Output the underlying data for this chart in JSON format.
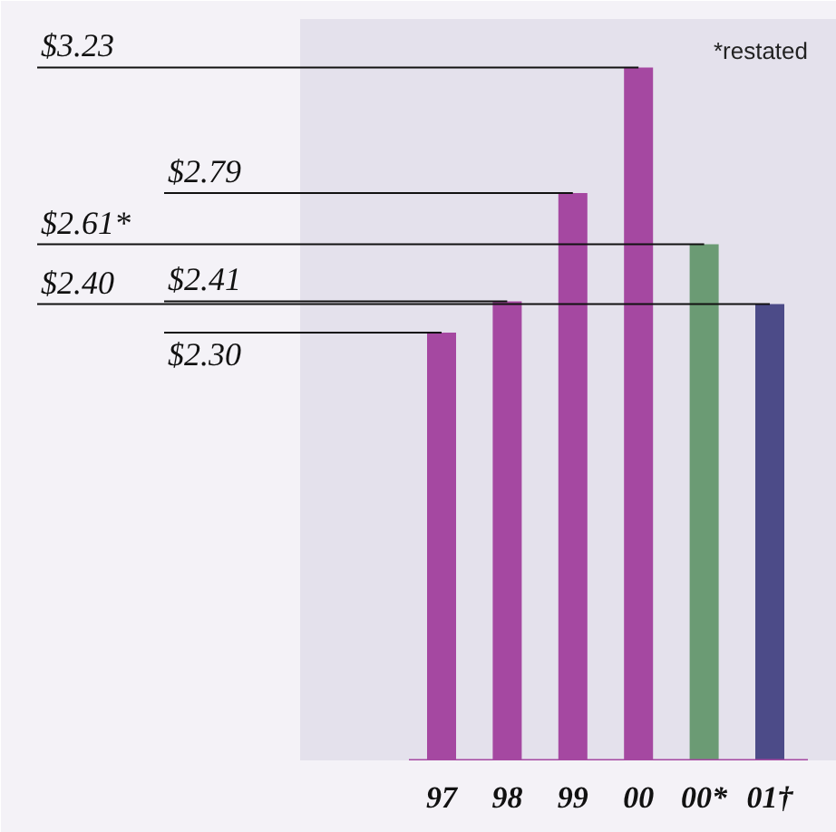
{
  "chart_data": {
    "type": "bar",
    "categories": [
      "97",
      "98",
      "99",
      "00",
      "00*",
      "01†"
    ],
    "values": [
      2.3,
      2.41,
      2.79,
      3.23,
      2.61,
      2.4
    ],
    "colors": [
      "#a548a1",
      "#a548a1",
      "#a548a1",
      "#a548a1",
      "#6b9b74",
      "#4c4b88"
    ],
    "value_labels": [
      "$2.30",
      "$2.41",
      "$2.79",
      "$3.23",
      "$2.61*",
      "$2.40"
    ],
    "annotations": [
      "*restated"
    ],
    "ylim": [
      0.8,
      3.4
    ]
  }
}
